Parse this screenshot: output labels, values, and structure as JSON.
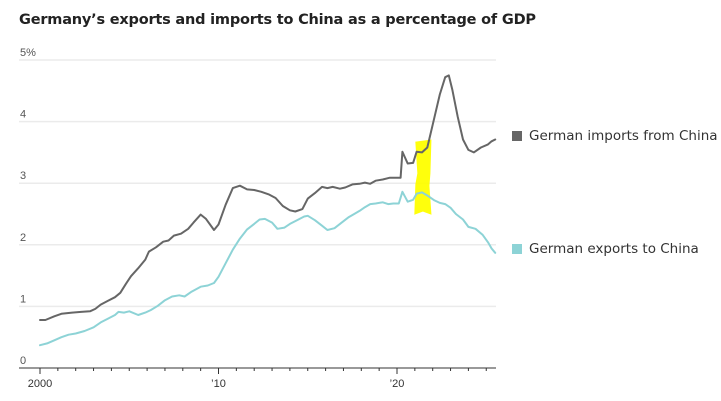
{
  "chart_data": {
    "type": "line",
    "title": "Germany’s exports and imports to China as a percentage of GDP",
    "xlabel": "",
    "ylabel": "",
    "xlim": [
      1999.9,
      2025.6
    ],
    "ylim": [
      0,
      5
    ],
    "grid": true,
    "y_ticks": [
      {
        "value": 0,
        "label": "0"
      },
      {
        "value": 1,
        "label": "1"
      },
      {
        "value": 2,
        "label": "2"
      },
      {
        "value": 3,
        "label": "3"
      },
      {
        "value": 4,
        "label": "4"
      },
      {
        "value": 5,
        "label": "5%"
      }
    ],
    "x_ticks": [
      {
        "value": 2000,
        "label": "2000"
      },
      {
        "value": 2010,
        "label": "’10"
      },
      {
        "value": 2020,
        "label": "’20"
      }
    ],
    "x_minor_ticks_per_year": true,
    "legend_position": "right",
    "series": [
      {
        "name": "German imports from China",
        "color": "#666666",
        "points": [
          [
            2000.0,
            0.78
          ],
          [
            2000.3,
            0.78
          ],
          [
            2000.8,
            0.84
          ],
          [
            2001.2,
            0.88
          ],
          [
            2001.8,
            0.9
          ],
          [
            2002.3,
            0.91
          ],
          [
            2002.8,
            0.92
          ],
          [
            2003.1,
            0.96
          ],
          [
            2003.4,
            1.03
          ],
          [
            2003.8,
            1.09
          ],
          [
            2004.2,
            1.15
          ],
          [
            2004.5,
            1.22
          ],
          [
            2004.8,
            1.36
          ],
          [
            2005.1,
            1.49
          ],
          [
            2005.5,
            1.62
          ],
          [
            2005.9,
            1.76
          ],
          [
            2006.1,
            1.89
          ],
          [
            2006.5,
            1.96
          ],
          [
            2006.9,
            2.05
          ],
          [
            2007.2,
            2.07
          ],
          [
            2007.5,
            2.15
          ],
          [
            2007.9,
            2.18
          ],
          [
            2008.3,
            2.26
          ],
          [
            2008.6,
            2.36
          ],
          [
            2009.0,
            2.49
          ],
          [
            2009.3,
            2.42
          ],
          [
            2009.75,
            2.24
          ],
          [
            2010.0,
            2.33
          ],
          [
            2010.4,
            2.65
          ],
          [
            2010.8,
            2.92
          ],
          [
            2011.2,
            2.96
          ],
          [
            2011.6,
            2.9
          ],
          [
            2012.0,
            2.89
          ],
          [
            2012.4,
            2.86
          ],
          [
            2012.8,
            2.82
          ],
          [
            2013.2,
            2.76
          ],
          [
            2013.6,
            2.63
          ],
          [
            2014.0,
            2.56
          ],
          [
            2014.3,
            2.54
          ],
          [
            2014.7,
            2.58
          ],
          [
            2015.0,
            2.75
          ],
          [
            2015.4,
            2.84
          ],
          [
            2015.8,
            2.94
          ],
          [
            2016.1,
            2.92
          ],
          [
            2016.4,
            2.94
          ],
          [
            2016.8,
            2.91
          ],
          [
            2017.1,
            2.93
          ],
          [
            2017.5,
            2.98
          ],
          [
            2017.9,
            2.99
          ],
          [
            2018.2,
            3.01
          ],
          [
            2018.5,
            2.99
          ],
          [
            2018.8,
            3.04
          ],
          [
            2019.2,
            3.06
          ],
          [
            2019.6,
            3.09
          ],
          [
            2020.0,
            3.09
          ],
          [
            2020.2,
            3.09
          ],
          [
            2020.3,
            3.51
          ],
          [
            2020.6,
            3.32
          ],
          [
            2020.9,
            3.33
          ],
          [
            2021.1,
            3.51
          ],
          [
            2021.4,
            3.5
          ],
          [
            2021.7,
            3.58
          ],
          [
            2022.0,
            3.95
          ],
          [
            2022.4,
            4.44
          ],
          [
            2022.7,
            4.72
          ],
          [
            2022.9,
            4.75
          ],
          [
            2023.1,
            4.52
          ],
          [
            2023.4,
            4.08
          ],
          [
            2023.7,
            3.71
          ],
          [
            2024.0,
            3.54
          ],
          [
            2024.3,
            3.5
          ],
          [
            2024.7,
            3.58
          ],
          [
            2025.1,
            3.63
          ],
          [
            2025.3,
            3.68
          ],
          [
            2025.5,
            3.71
          ]
        ]
      },
      {
        "name": "German exports to China",
        "color": "#8dd3d6",
        "points": [
          [
            2000.0,
            0.37
          ],
          [
            2000.4,
            0.4
          ],
          [
            2000.8,
            0.45
          ],
          [
            2001.2,
            0.5
          ],
          [
            2001.6,
            0.54
          ],
          [
            2002.0,
            0.56
          ],
          [
            2002.5,
            0.6
          ],
          [
            2003.0,
            0.66
          ],
          [
            2003.4,
            0.74
          ],
          [
            2003.8,
            0.8
          ],
          [
            2004.2,
            0.86
          ],
          [
            2004.4,
            0.91
          ],
          [
            2004.7,
            0.9
          ],
          [
            2005.0,
            0.92
          ],
          [
            2005.5,
            0.86
          ],
          [
            2005.9,
            0.9
          ],
          [
            2006.2,
            0.94
          ],
          [
            2006.6,
            1.01
          ],
          [
            2007.0,
            1.1
          ],
          [
            2007.4,
            1.16
          ],
          [
            2007.8,
            1.18
          ],
          [
            2008.1,
            1.16
          ],
          [
            2008.5,
            1.24
          ],
          [
            2009.0,
            1.32
          ],
          [
            2009.4,
            1.34
          ],
          [
            2009.75,
            1.38
          ],
          [
            2010.0,
            1.48
          ],
          [
            2010.4,
            1.7
          ],
          [
            2010.8,
            1.92
          ],
          [
            2011.2,
            2.1
          ],
          [
            2011.6,
            2.25
          ],
          [
            2012.0,
            2.34
          ],
          [
            2012.3,
            2.41
          ],
          [
            2012.6,
            2.42
          ],
          [
            2013.0,
            2.36
          ],
          [
            2013.3,
            2.26
          ],
          [
            2013.7,
            2.28
          ],
          [
            2014.0,
            2.34
          ],
          [
            2014.4,
            2.4
          ],
          [
            2014.8,
            2.46
          ],
          [
            2015.0,
            2.47
          ],
          [
            2015.4,
            2.4
          ],
          [
            2015.8,
            2.31
          ],
          [
            2016.1,
            2.24
          ],
          [
            2016.5,
            2.27
          ],
          [
            2016.9,
            2.36
          ],
          [
            2017.3,
            2.45
          ],
          [
            2017.6,
            2.5
          ],
          [
            2017.9,
            2.55
          ],
          [
            2018.2,
            2.61
          ],
          [
            2018.5,
            2.66
          ],
          [
            2018.8,
            2.67
          ],
          [
            2019.2,
            2.69
          ],
          [
            2019.5,
            2.66
          ],
          [
            2019.8,
            2.67
          ],
          [
            2020.1,
            2.67
          ],
          [
            2020.3,
            2.86
          ],
          [
            2020.6,
            2.7
          ],
          [
            2020.9,
            2.73
          ],
          [
            2021.1,
            2.83
          ],
          [
            2021.4,
            2.85
          ],
          [
            2021.7,
            2.8
          ],
          [
            2022.1,
            2.72
          ],
          [
            2022.4,
            2.68
          ],
          [
            2022.7,
            2.66
          ],
          [
            2023.0,
            2.6
          ],
          [
            2023.3,
            2.5
          ],
          [
            2023.7,
            2.41
          ],
          [
            2024.0,
            2.29
          ],
          [
            2024.4,
            2.26
          ],
          [
            2024.8,
            2.16
          ],
          [
            2025.1,
            2.04
          ],
          [
            2025.3,
            1.94
          ],
          [
            2025.5,
            1.87
          ]
        ]
      }
    ],
    "annotations": [
      {
        "type": "highlight-marker",
        "color": "#ffff00",
        "x_range": [
          2021.0,
          2021.9
        ],
        "y_range": [
          2.5,
          3.7
        ]
      }
    ]
  },
  "legend": {
    "imports_label": "German imports from China",
    "exports_label": "German exports to China",
    "imports_color": "#666666",
    "exports_color": "#8dd3d6"
  }
}
